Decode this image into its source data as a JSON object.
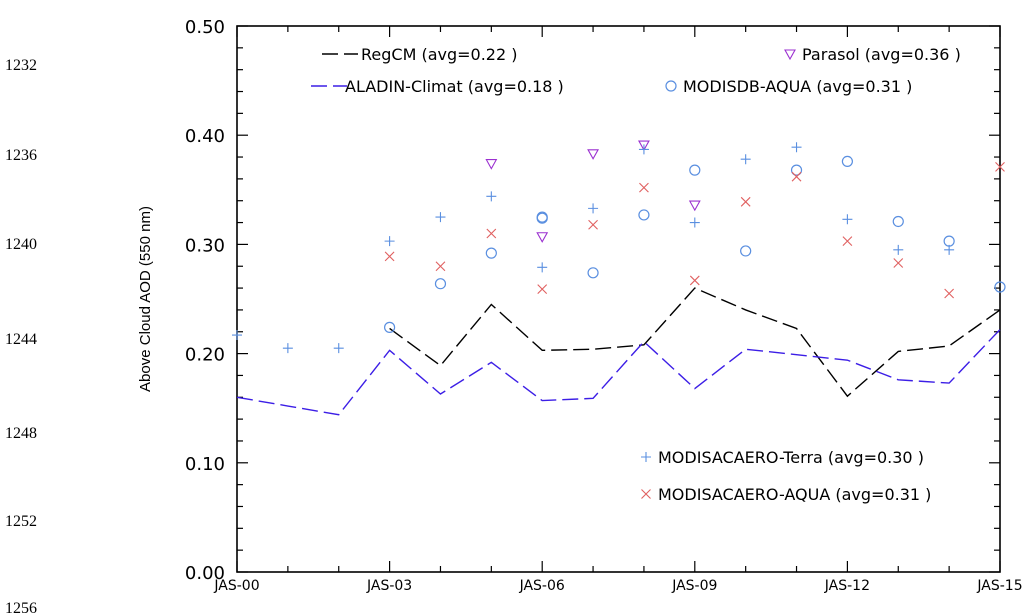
{
  "line_numbers": [
    "1232",
    "1236",
    "1240",
    "1244",
    "1248",
    "1252",
    "1256"
  ],
  "chart_data": {
    "type": "line",
    "title": "",
    "xlabel": "",
    "ylabel": "Above Cloud AOD (550 nm)",
    "xlim": [
      2000,
      2015
    ],
    "ylim": [
      0,
      0.5
    ],
    "x_ticks": [
      {
        "value": 2000,
        "label": "JAS-00"
      },
      {
        "value": 2003,
        "label": "JAS-03"
      },
      {
        "value": 2006,
        "label": "JAS-06"
      },
      {
        "value": 2009,
        "label": "JAS-09"
      },
      {
        "value": 2012,
        "label": "JAS-12"
      },
      {
        "value": 2015,
        "label": "JAS-15"
      }
    ],
    "y_ticks": [
      {
        "value": 0.0,
        "label": "0.00"
      },
      {
        "value": 0.1,
        "label": "0.10"
      },
      {
        "value": 0.2,
        "label": "0.20"
      },
      {
        "value": 0.3,
        "label": "0.30"
      },
      {
        "value": 0.4,
        "label": "0.40"
      },
      {
        "value": 0.5,
        "label": "0.50"
      }
    ],
    "grid": false,
    "series": [
      {
        "name": "RegCM (avg=0.22 )",
        "kind": "line",
        "color": "#000000",
        "dash": "long",
        "x": [
          2003,
          2004,
          2005,
          2006,
          2007,
          2008,
          2009,
          2010,
          2011,
          2012,
          2013,
          2014,
          2015
        ],
        "y": [
          0.223,
          0.189,
          0.245,
          0.203,
          0.204,
          0.208,
          0.26,
          0.24,
          0.223,
          0.161,
          0.202,
          0.207,
          0.24
        ]
      },
      {
        "name": "ALADIN-Climat (avg=0.18 )",
        "kind": "line",
        "color": "#3c1ee6",
        "dash": "long",
        "x": [
          2000,
          2001,
          2002,
          2003,
          2004,
          2005,
          2006,
          2007,
          2008,
          2009,
          2010,
          2011,
          2012,
          2013,
          2014,
          2015
        ],
        "y": [
          0.16,
          0.152,
          0.144,
          0.203,
          0.163,
          0.192,
          0.157,
          0.159,
          0.211,
          0.168,
          0.204,
          0.199,
          0.194,
          0.176,
          0.173,
          0.222
        ]
      },
      {
        "name": "Parasol (avg=0.36 )",
        "kind": "marker",
        "marker": "triangle-down",
        "color": "#9b30d0",
        "x": [
          2005,
          2006,
          2007,
          2008,
          2009
        ],
        "y": [
          0.374,
          0.307,
          0.383,
          0.391,
          0.336
        ]
      },
      {
        "name": "MODISDB-AQUA (avg=0.31 )",
        "kind": "marker",
        "marker": "circle",
        "color": "#5a8fe0",
        "x": [
          2003,
          2004,
          2005,
          2006,
          2006,
          2007,
          2008,
          2009,
          2010,
          2011,
          2012,
          2013,
          2014,
          2015
        ],
        "y": [
          0.224,
          0.264,
          0.292,
          0.324,
          0.325,
          0.274,
          0.327,
          0.368,
          0.294,
          0.368,
          0.376,
          0.321,
          0.303,
          0.261
        ]
      },
      {
        "name": "MODISACAERO-Terra (avg=0.30 )",
        "kind": "marker",
        "marker": "plus",
        "color": "#5a8fe0",
        "x": [
          2000,
          2001,
          2002,
          2003,
          2004,
          2005,
          2006,
          2007,
          2008,
          2009,
          2010,
          2011,
          2012,
          2013,
          2014
        ],
        "y": [
          0.217,
          0.205,
          0.205,
          0.303,
          0.325,
          0.344,
          0.279,
          0.333,
          0.387,
          0.32,
          0.378,
          0.389,
          0.323,
          0.295,
          0.295
        ]
      },
      {
        "name": "MODISACAERO-AQUA (avg=0.31 )",
        "kind": "marker",
        "marker": "cross",
        "color": "#e06060",
        "x": [
          2003,
          2004,
          2005,
          2006,
          2007,
          2008,
          2009,
          2010,
          2011,
          2012,
          2013,
          2014,
          2015
        ],
        "y": [
          0.289,
          0.28,
          0.31,
          0.259,
          0.318,
          0.352,
          0.267,
          0.339,
          0.362,
          0.303,
          0.283,
          0.255,
          0.371
        ]
      }
    ],
    "legend": [
      {
        "series": 0,
        "placement": "top-left"
      },
      {
        "series": 1,
        "placement": "top-left"
      },
      {
        "series": 2,
        "placement": "top-right"
      },
      {
        "series": 3,
        "placement": "top-right"
      },
      {
        "series": 4,
        "placement": "bottom-right"
      },
      {
        "series": 5,
        "placement": "bottom-right"
      }
    ]
  }
}
